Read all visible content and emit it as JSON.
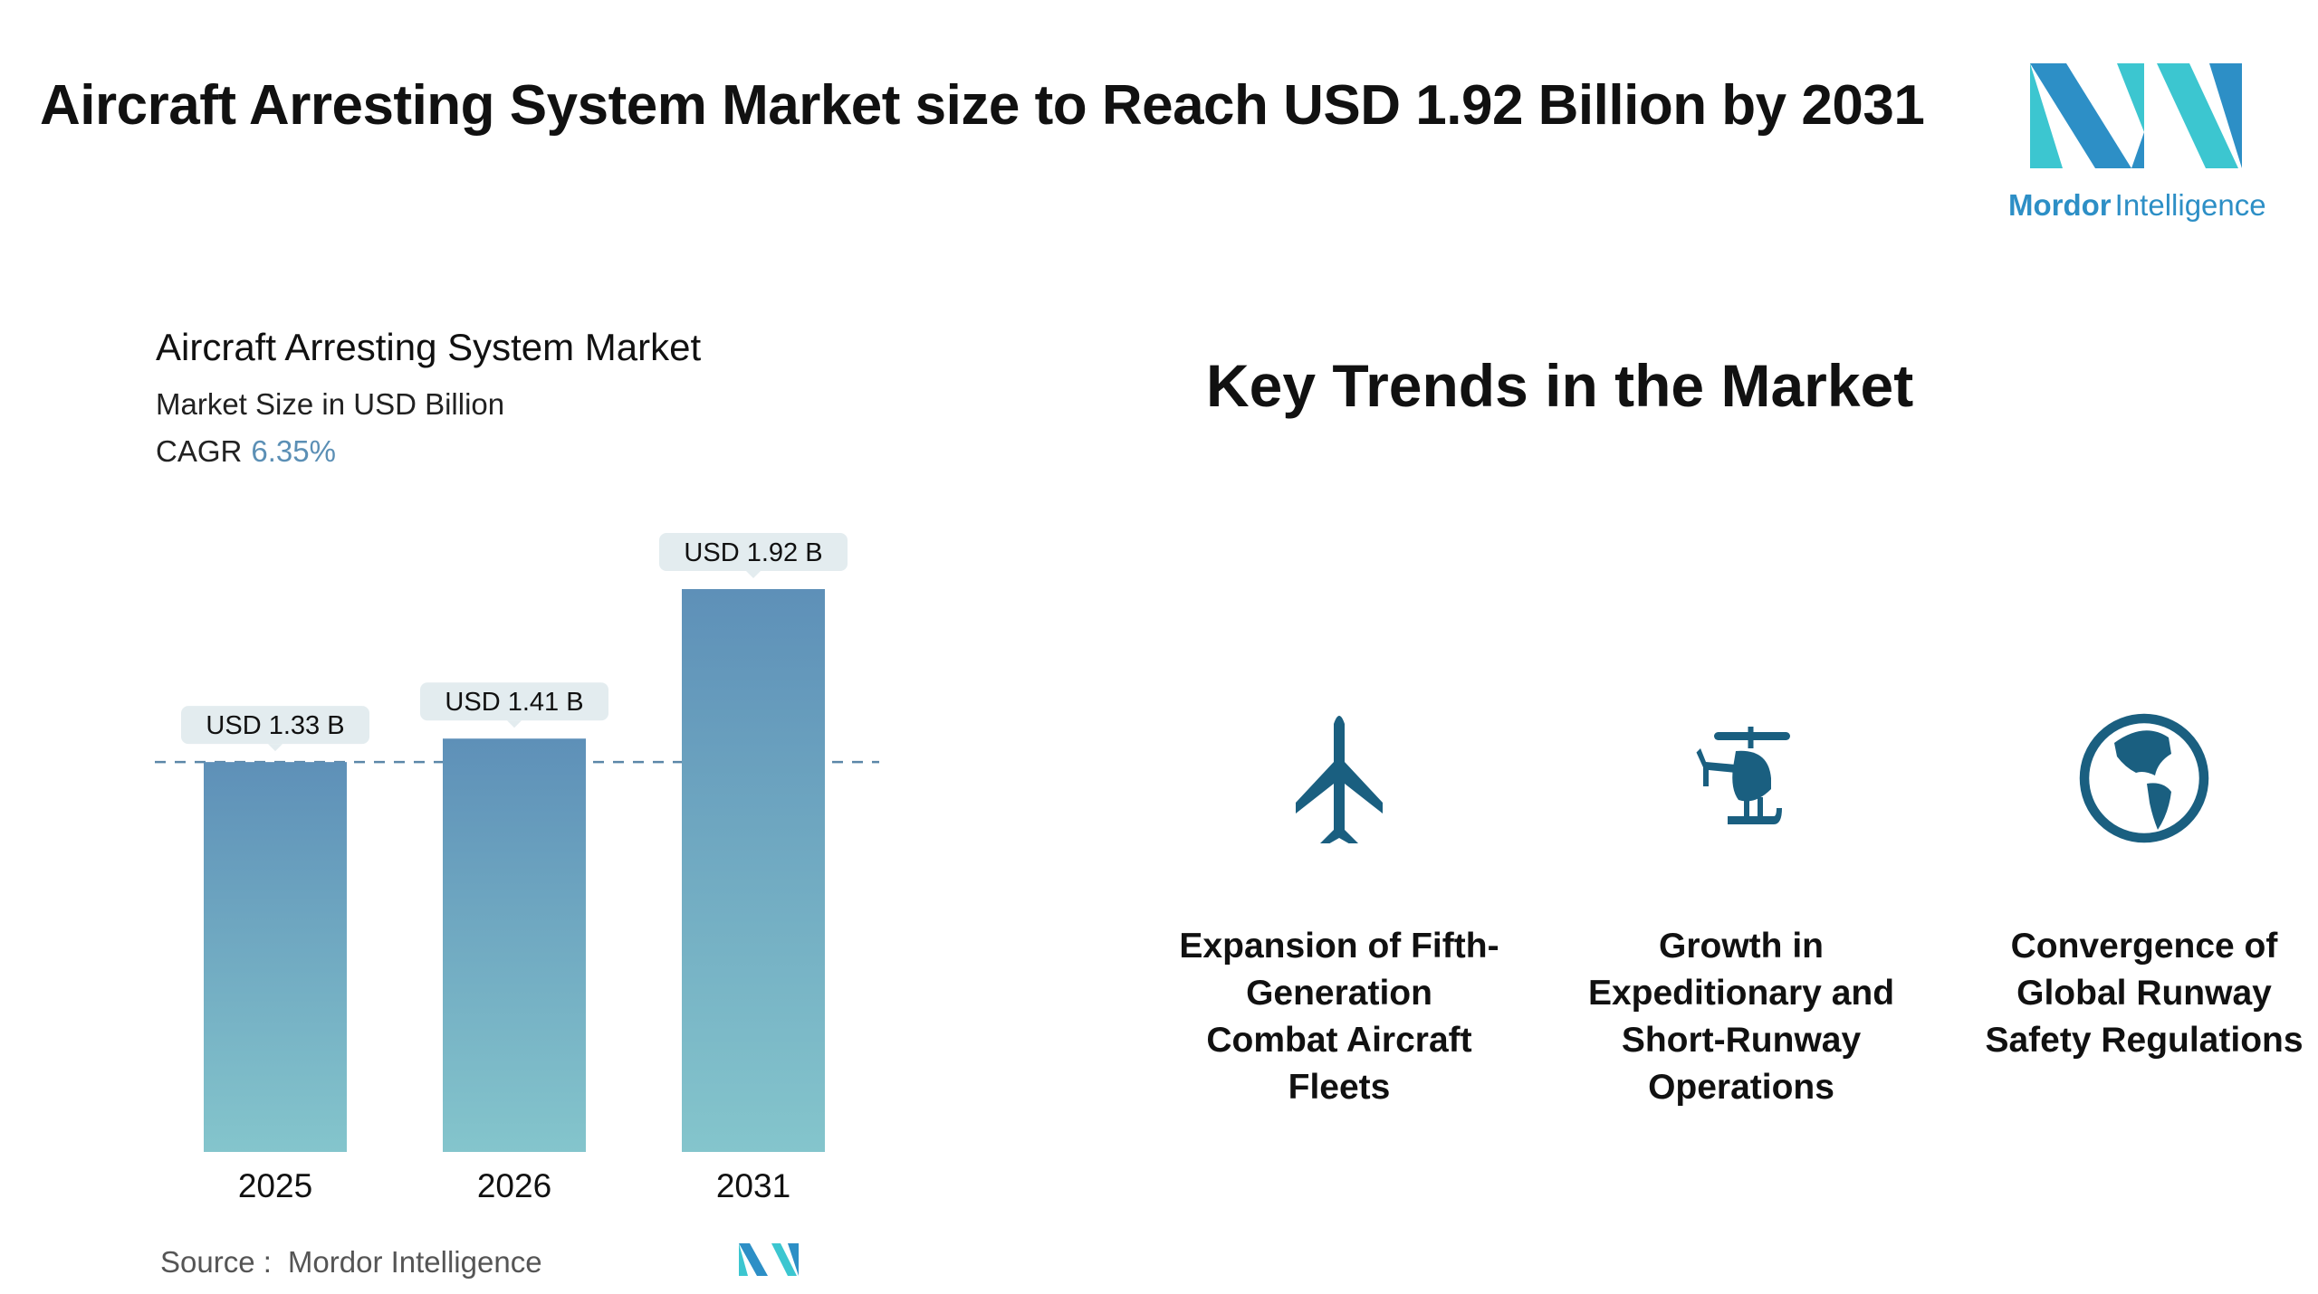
{
  "header": {
    "title": "Aircraft Arresting System Market size to Reach USD 1.92 Billion by 2031",
    "logo_text": "Mordor Intelligence"
  },
  "chart_data": {
    "type": "bar",
    "title": "Aircraft Arresting System Market",
    "subtitle": "Market Size in USD Billion",
    "cagr_label": "CAGR",
    "cagr_value": "6.35%",
    "categories": [
      "2025",
      "2026",
      "2031"
    ],
    "values": [
      1.33,
      1.41,
      1.92
    ],
    "data_labels": [
      "USD 1.33 B",
      "USD 1.41 B",
      "USD 1.92 B"
    ],
    "reference_line": 1.33,
    "ylim": [
      0,
      1.92
    ],
    "grid": false,
    "colors": {
      "bar_top": "#5e90b8",
      "bar_bottom": "#84c5cc",
      "label_bg": "#e3ecef",
      "ref_line": "#5b87a8"
    }
  },
  "source": {
    "label": "Source :",
    "value": "Mordor Intelligence"
  },
  "trends": {
    "title": "Key Trends in the Market",
    "icon_color": "#1a5f80",
    "items": [
      {
        "icon": "airplane-icon",
        "lines": [
          "Expansion of Fifth-",
          "Generation",
          "Combat Aircraft",
          "Fleets"
        ]
      },
      {
        "icon": "helicopter-icon",
        "lines": [
          "Growth in",
          "Expeditionary and",
          "Short-Runway",
          "Operations"
        ]
      },
      {
        "icon": "globe-icon",
        "lines": [
          "Convergence of",
          "Global Runway",
          "Safety Regulations"
        ]
      }
    ]
  }
}
